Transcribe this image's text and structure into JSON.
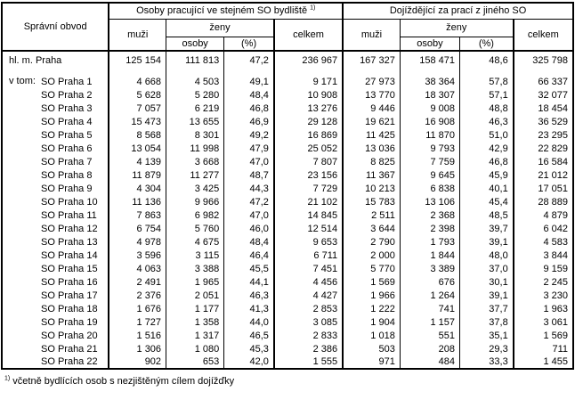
{
  "table": {
    "col1_header": "Správní obvod",
    "group1": "Osoby pracující ve stejném SO bydliště ",
    "group1_sup": "1)",
    "group2": "Dojíždějící za prací z jiného SO",
    "muzi": "muži",
    "zeny": "ženy",
    "osoby": "osoby",
    "pct": "(%)",
    "celkem": "celkem",
    "vtom_label": "v tom:",
    "total_row": {
      "label": "hl. m. Praha",
      "values": [
        "125 154",
        "111 813",
        "47,2",
        "236 967",
        "167 327",
        "158 471",
        "48,6",
        "325 798"
      ]
    },
    "rows": [
      {
        "label": "SO Praha 1",
        "values": [
          "4 668",
          "4 503",
          "49,1",
          "9 171",
          "27 973",
          "38 364",
          "57,8",
          "66 337"
        ]
      },
      {
        "label": "SO Praha 2",
        "values": [
          "5 628",
          "5 280",
          "48,4",
          "10 908",
          "13 770",
          "18 307",
          "57,1",
          "32 077"
        ]
      },
      {
        "label": "SO Praha 3",
        "values": [
          "7 057",
          "6 219",
          "46,8",
          "13 276",
          "9 446",
          "9 008",
          "48,8",
          "18 454"
        ]
      },
      {
        "label": "SO Praha 4",
        "values": [
          "15 473",
          "13 655",
          "46,9",
          "29 128",
          "19 621",
          "16 908",
          "46,3",
          "36 529"
        ]
      },
      {
        "label": "SO Praha 5",
        "values": [
          "8 568",
          "8 301",
          "49,2",
          "16 869",
          "11 425",
          "11 870",
          "51,0",
          "23 295"
        ]
      },
      {
        "label": "SO Praha 6",
        "values": [
          "13 054",
          "11 998",
          "47,9",
          "25 052",
          "13 036",
          "9 793",
          "42,9",
          "22 829"
        ]
      },
      {
        "label": "SO Praha 7",
        "values": [
          "4 139",
          "3 668",
          "47,0",
          "7 807",
          "8 825",
          "7 759",
          "46,8",
          "16 584"
        ]
      },
      {
        "label": "SO Praha 8",
        "values": [
          "11 879",
          "11 277",
          "48,7",
          "23 156",
          "11 367",
          "9 645",
          "45,9",
          "21 012"
        ]
      },
      {
        "label": "SO Praha 9",
        "values": [
          "4 304",
          "3 425",
          "44,3",
          "7 729",
          "10 213",
          "6 838",
          "40,1",
          "17 051"
        ]
      },
      {
        "label": "SO Praha 10",
        "values": [
          "11 136",
          "9 966",
          "47,2",
          "21 102",
          "15 783",
          "13 106",
          "45,4",
          "28 889"
        ]
      },
      {
        "label": "SO Praha 11",
        "values": [
          "7 863",
          "6 982",
          "47,0",
          "14 845",
          "2 511",
          "2 368",
          "48,5",
          "4 879"
        ]
      },
      {
        "label": "SO Praha 12",
        "values": [
          "6 754",
          "5 760",
          "46,0",
          "12 514",
          "3 644",
          "2 398",
          "39,7",
          "6 042"
        ]
      },
      {
        "label": "SO Praha 13",
        "values": [
          "4 978",
          "4 675",
          "48,4",
          "9 653",
          "2 790",
          "1 793",
          "39,1",
          "4 583"
        ]
      },
      {
        "label": "SO Praha 14",
        "values": [
          "3 596",
          "3 115",
          "46,4",
          "6 711",
          "2 000",
          "1 844",
          "48,0",
          "3 844"
        ]
      },
      {
        "label": "SO Praha 15",
        "values": [
          "4 063",
          "3 388",
          "45,5",
          "7 451",
          "5 770",
          "3 389",
          "37,0",
          "9 159"
        ]
      },
      {
        "label": "SO Praha 16",
        "values": [
          "2 491",
          "1 965",
          "44,1",
          "4 456",
          "1 569",
          "676",
          "30,1",
          "2 245"
        ]
      },
      {
        "label": "SO Praha 17",
        "values": [
          "2 376",
          "2 051",
          "46,3",
          "4 427",
          "1 966",
          "1 264",
          "39,1",
          "3 230"
        ]
      },
      {
        "label": "SO Praha 18",
        "values": [
          "1 676",
          "1 177",
          "41,3",
          "2 853",
          "1 222",
          "741",
          "37,7",
          "1 963"
        ]
      },
      {
        "label": "SO Praha 19",
        "values": [
          "1 727",
          "1 358",
          "44,0",
          "3 085",
          "1 904",
          "1 157",
          "37,8",
          "3 061"
        ]
      },
      {
        "label": "SO Praha 20",
        "values": [
          "1 516",
          "1 317",
          "46,5",
          "2 833",
          "1 018",
          "551",
          "35,1",
          "1 569"
        ]
      },
      {
        "label": "SO Praha 21",
        "values": [
          "1 306",
          "1 080",
          "45,3",
          "2 386",
          "503",
          "208",
          "29,3",
          "711"
        ]
      },
      {
        "label": "SO Praha 22",
        "values": [
          "902",
          "653",
          "42,0",
          "1 555",
          "971",
          "484",
          "33,3",
          "1 455"
        ]
      }
    ]
  },
  "footnote": {
    "sup": "1)",
    "text": " včetně bydlících osob s nezjištěným cílem dojížďky"
  }
}
